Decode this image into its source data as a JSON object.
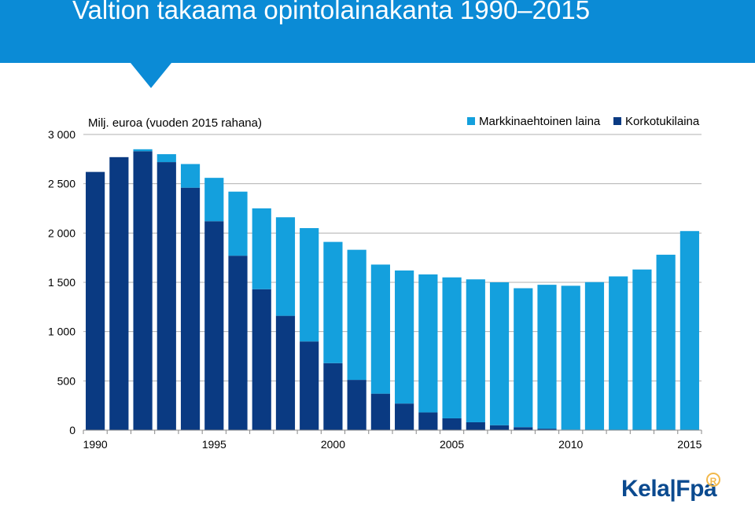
{
  "page": {
    "title": "Valtion takaama opintolainakanta 1990–2015",
    "logo_text": "Kela|Fpa",
    "logo_badge": "R"
  },
  "colors": {
    "header": "#0b8bd6",
    "markkina": "#14a0dd",
    "korko": "#0a3a82",
    "grid": "#b0b0b0"
  },
  "chart_data": {
    "type": "bar",
    "stacked": true,
    "unit_label": "Milj. euroa (vuoden 2015 rahana)",
    "categories": [
      "1990",
      "1991",
      "1992",
      "1993",
      "1994",
      "1995",
      "1996",
      "1997",
      "1998",
      "1999",
      "2000",
      "2001",
      "2002",
      "2003",
      "2004",
      "2005",
      "2006",
      "2007",
      "2008",
      "2009",
      "2010",
      "2011",
      "2012",
      "2013",
      "2014",
      "2015"
    ],
    "x_tick_labels": [
      "1990",
      "1995",
      "2000",
      "2005",
      "2010",
      "2015"
    ],
    "ylim": [
      0,
      3000
    ],
    "y_ticks": [
      0,
      500,
      1000,
      1500,
      2000,
      2500,
      3000
    ],
    "y_tick_labels": [
      "0",
      "500",
      "1 000",
      "1 500",
      "2 000",
      "2 500",
      "3 000"
    ],
    "grid": true,
    "legend_position": "top-right",
    "series": [
      {
        "name": "Korkotukilaina",
        "color": "#0a3a82",
        "values": [
          2620,
          2770,
          2830,
          2720,
          2460,
          2120,
          1770,
          1430,
          1160,
          900,
          680,
          510,
          370,
          270,
          180,
          120,
          80,
          50,
          30,
          15,
          5,
          2,
          0,
          0,
          0,
          0
        ]
      },
      {
        "name": "Markkinaehtoinen laina",
        "color": "#14a0dd",
        "values": [
          0,
          0,
          20,
          80,
          240,
          440,
          650,
          820,
          1000,
          1150,
          1230,
          1320,
          1310,
          1350,
          1400,
          1430,
          1450,
          1450,
          1410,
          1460,
          1460,
          1500,
          1560,
          1630,
          1780,
          2020
        ]
      }
    ],
    "legend_order": [
      "Markkinaehtoinen laina",
      "Korkotukilaina"
    ]
  }
}
